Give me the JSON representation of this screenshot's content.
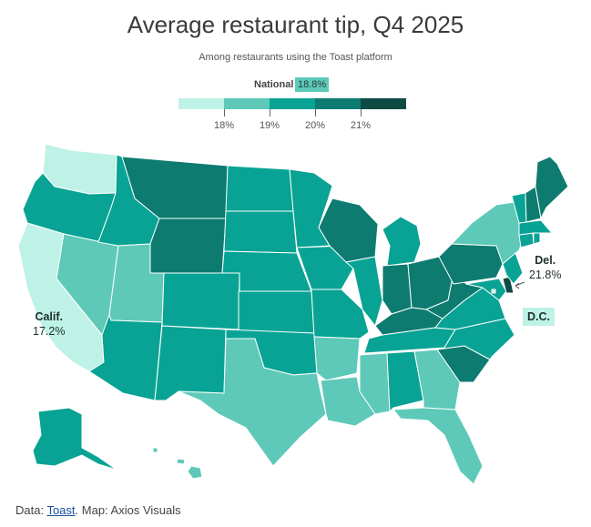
{
  "title": "Average restaurant tip, Q4 2025",
  "subtitle": "Among restaurants using the Toast platform",
  "legend": {
    "national_label": "National",
    "national_value": "18.8%",
    "ticks": [
      "18%",
      "19%",
      "20%",
      "21%"
    ],
    "colors": [
      "#bff2e6",
      "#5ec9b8",
      "#08a394",
      "#0d7b70",
      "#0e4b45"
    ]
  },
  "labels": {
    "calif_name": "Calif.",
    "calif_value": "17.2%",
    "del_name": "Del.",
    "del_value": "21.8%",
    "dc_name": "D.C."
  },
  "footer": {
    "prefix": "Data: ",
    "link": "Toast",
    "suffix": ". Map: Axios Visuals"
  },
  "states": [
    {
      "name": "Washington",
      "bin": 0
    },
    {
      "name": "Oregon",
      "bin": 2
    },
    {
      "name": "California",
      "bin": 0
    },
    {
      "name": "Nevada",
      "bin": 1
    },
    {
      "name": "Idaho",
      "bin": 2
    },
    {
      "name": "Montana",
      "bin": 3
    },
    {
      "name": "Wyoming",
      "bin": 3
    },
    {
      "name": "Utah",
      "bin": 1
    },
    {
      "name": "Colorado",
      "bin": 2
    },
    {
      "name": "Arizona",
      "bin": 2
    },
    {
      "name": "New Mexico",
      "bin": 2
    },
    {
      "name": "North Dakota",
      "bin": 2
    },
    {
      "name": "South Dakota",
      "bin": 2
    },
    {
      "name": "Nebraska",
      "bin": 2
    },
    {
      "name": "Kansas",
      "bin": 2
    },
    {
      "name": "Oklahoma",
      "bin": 2
    },
    {
      "name": "Texas",
      "bin": 1
    },
    {
      "name": "Minnesota",
      "bin": 2
    },
    {
      "name": "Iowa",
      "bin": 2
    },
    {
      "name": "Missouri",
      "bin": 2
    },
    {
      "name": "Arkansas",
      "bin": 1
    },
    {
      "name": "Louisiana",
      "bin": 1
    },
    {
      "name": "Wisconsin",
      "bin": 3
    },
    {
      "name": "Illinois",
      "bin": 2
    },
    {
      "name": "Michigan",
      "bin": 2
    },
    {
      "name": "Indiana",
      "bin": 3
    },
    {
      "name": "Ohio",
      "bin": 3
    },
    {
      "name": "Kentucky",
      "bin": 3
    },
    {
      "name": "Tennessee",
      "bin": 2
    },
    {
      "name": "Mississippi",
      "bin": 1
    },
    {
      "name": "Alabama",
      "bin": 2
    },
    {
      "name": "Georgia",
      "bin": 1
    },
    {
      "name": "Florida",
      "bin": 1
    },
    {
      "name": "South Carolina",
      "bin": 3
    },
    {
      "name": "North Carolina",
      "bin": 2
    },
    {
      "name": "Virginia",
      "bin": 2
    },
    {
      "name": "West Virginia",
      "bin": 3
    },
    {
      "name": "Pennsylvania",
      "bin": 3
    },
    {
      "name": "New York",
      "bin": 1
    },
    {
      "name": "Maryland",
      "bin": 2
    },
    {
      "name": "Delaware",
      "bin": 4
    },
    {
      "name": "New Jersey",
      "bin": 2
    },
    {
      "name": "Connecticut",
      "bin": 2
    },
    {
      "name": "Rhode Island",
      "bin": 2
    },
    {
      "name": "Massachusetts",
      "bin": 2
    },
    {
      "name": "Vermont",
      "bin": 2
    },
    {
      "name": "New Hampshire",
      "bin": 3
    },
    {
      "name": "Maine",
      "bin": 3
    },
    {
      "name": "Alaska",
      "bin": 2
    },
    {
      "name": "Hawaii",
      "bin": 1
    },
    {
      "name": "District of Columbia",
      "bin": 0
    }
  ]
}
